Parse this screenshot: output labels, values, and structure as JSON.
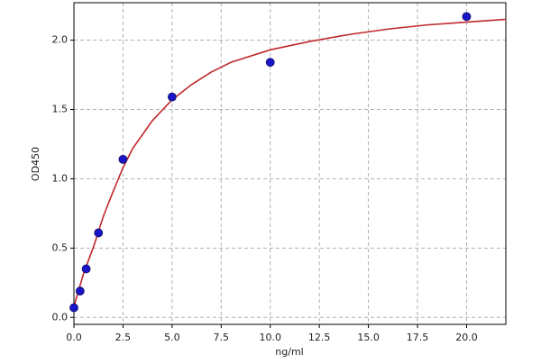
{
  "chart_data": {
    "type": "scatter",
    "xlabel": "ng/ml",
    "ylabel": "OD450",
    "xlim": [
      0,
      22
    ],
    "ylim": [
      -0.05,
      2.27
    ],
    "xticks": [
      {
        "value": 0,
        "label": "0.0"
      },
      {
        "value": 2.5,
        "label": "2.5"
      },
      {
        "value": 5,
        "label": "5.0"
      },
      {
        "value": 7.5,
        "label": "7.5"
      },
      {
        "value": 10,
        "label": "10.0"
      },
      {
        "value": 12.5,
        "label": "12.5"
      },
      {
        "value": 15,
        "label": "15.0"
      },
      {
        "value": 17.5,
        "label": "17.5"
      },
      {
        "value": 20,
        "label": "20.0"
      }
    ],
    "yticks": [
      {
        "value": 0,
        "label": "0.0"
      },
      {
        "value": 0.5,
        "label": "0.5"
      },
      {
        "value": 1,
        "label": "1.0"
      },
      {
        "value": 1.5,
        "label": "1.5"
      },
      {
        "value": 2,
        "label": "2.0"
      }
    ],
    "grid": true,
    "points": {
      "color": "#1a14c8",
      "x": [
        0,
        0.3125,
        0.625,
        1.25,
        2.5,
        5,
        10,
        20
      ],
      "values": [
        0.07,
        0.19,
        0.35,
        0.61,
        1.14,
        1.59,
        1.84,
        2.17
      ]
    },
    "fit": {
      "color": "#c0282a",
      "x": [
        0,
        0.25,
        0.5,
        1,
        1.5,
        2,
        2.5,
        3,
        4,
        5,
        6,
        7,
        8,
        10,
        12,
        14,
        16,
        18,
        20,
        22
      ],
      "values": [
        0.08,
        0.2,
        0.32,
        0.51,
        0.73,
        0.91,
        1.08,
        1.22,
        1.42,
        1.57,
        1.68,
        1.77,
        1.84,
        1.93,
        1.99,
        2.04,
        2.08,
        2.11,
        2.13,
        2.15
      ]
    }
  }
}
